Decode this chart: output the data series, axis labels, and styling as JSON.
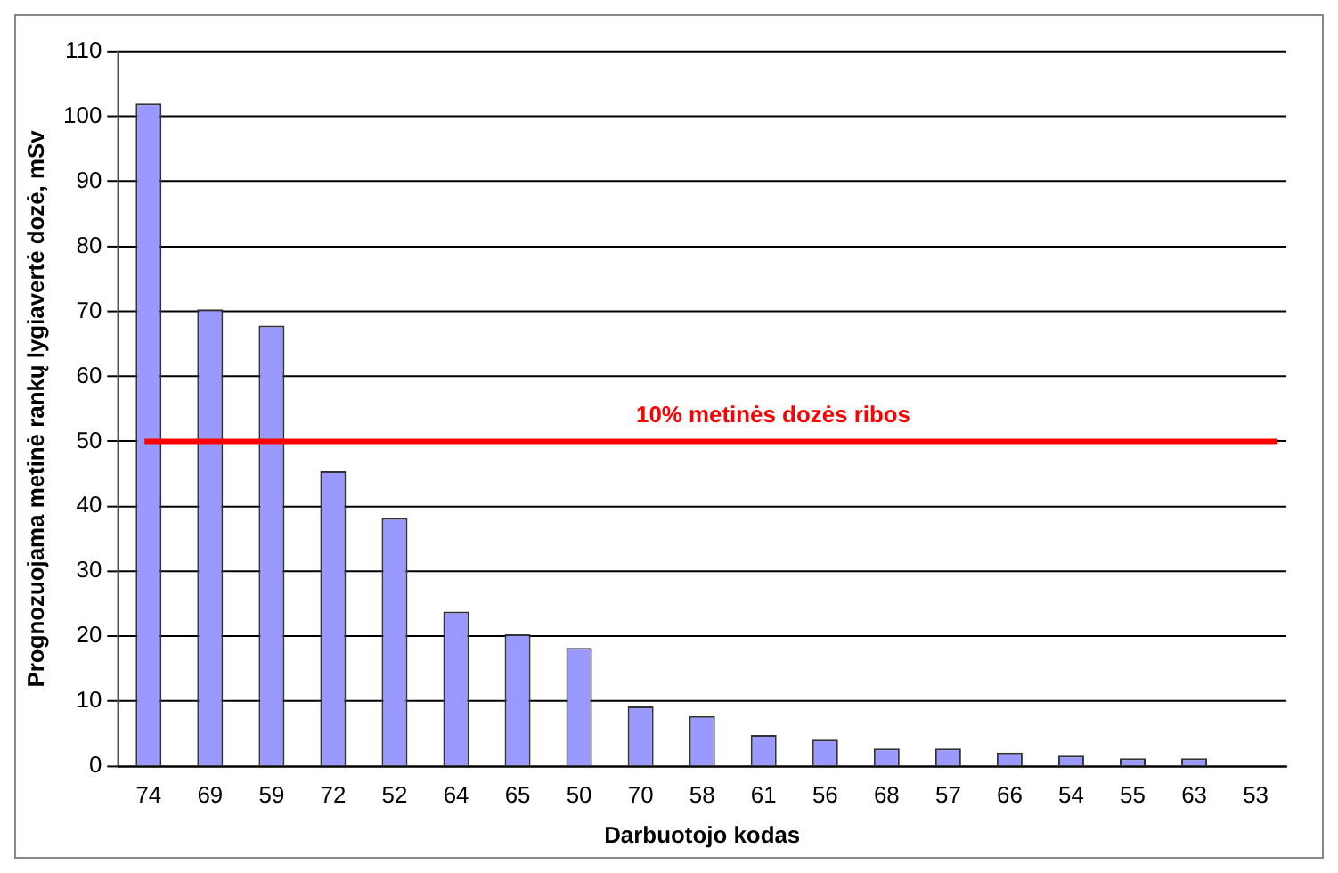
{
  "chart_data": {
    "type": "bar",
    "xlabel": "Darbuotojo kodas",
    "ylabel": "Prognozuojama metinė rankų lygiavertė dozė, mSv",
    "categories": [
      "74",
      "69",
      "59",
      "72",
      "52",
      "64",
      "65",
      "50",
      "70",
      "58",
      "61",
      "56",
      "68",
      "57",
      "66",
      "54",
      "55",
      "63",
      "53"
    ],
    "values": [
      102,
      70.3,
      67.8,
      45.4,
      38.2,
      23.8,
      20.3,
      18.2,
      9.2,
      7.7,
      4.8,
      4.1,
      2.7,
      2.7,
      2.1,
      1.6,
      1.2,
      1.2,
      0
    ],
    "color": "#9999ff",
    "ylim": [
      0,
      110
    ],
    "yticks": [
      0,
      10,
      20,
      30,
      40,
      50,
      60,
      70,
      80,
      90,
      100,
      110
    ],
    "grid": "y",
    "legend": false,
    "ref_lines": [
      {
        "axis": "y",
        "value": 50,
        "label": "10% metinės dozės ribos",
        "color": "#ff0000"
      }
    ]
  }
}
